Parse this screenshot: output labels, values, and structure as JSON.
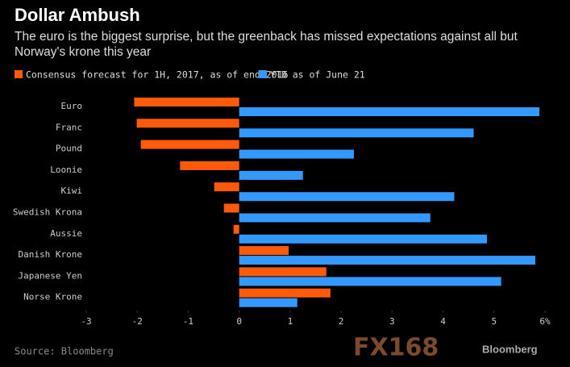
{
  "chart_data": {
    "type": "barh",
    "title": "Dollar Ambush",
    "subtitle": "The euro is the biggest surprise, but the greenback has missed expectations against all but Norway's krone this year",
    "categories": [
      "Euro",
      "Franc",
      "Pound",
      "Loonie",
      "Kiwi",
      "Swedish Krona",
      "Aussie",
      "Danish Krone",
      "Japanese Yen",
      "Norse Krone"
    ],
    "series": [
      {
        "name": "Consensus forecast for 1H, 2017, as of end-2016",
        "color": "#ff5a0a",
        "values": [
          -2.06,
          -2.01,
          -1.93,
          -1.16,
          -0.49,
          -0.3,
          -0.11,
          0.97,
          1.71,
          1.79
        ]
      },
      {
        "name": "YTD as of June 21",
        "color": "#3399ff",
        "values": [
          5.89,
          4.6,
          2.25,
          1.25,
          4.22,
          3.75,
          4.86,
          5.81,
          5.14,
          1.14
        ]
      }
    ],
    "xlim": [
      -3,
      6
    ],
    "xticks": [
      -3,
      -2,
      -1,
      0,
      1,
      2,
      3,
      4,
      5,
      {
        "value": 6,
        "label": "6%"
      }
    ],
    "grid": false,
    "source": "Source: Bloomberg",
    "watermark": "FX168",
    "logo": "Bloomberg"
  }
}
